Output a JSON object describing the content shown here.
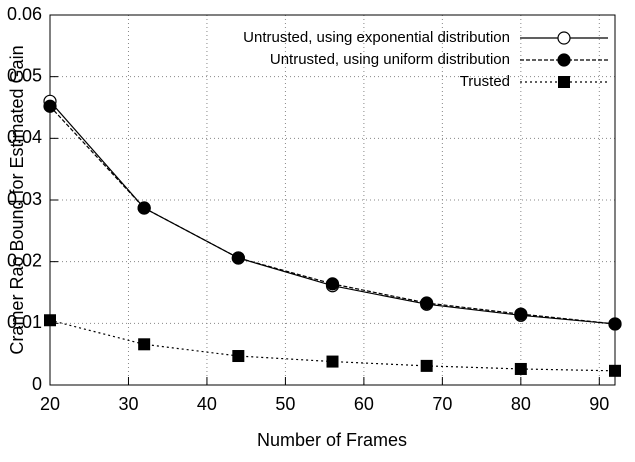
{
  "chart_data": {
    "type": "line",
    "xlabel": "Number of Frames",
    "ylabel": "Cramer Rao Bound for Estimated Gain",
    "x": [
      20,
      32,
      44,
      56,
      68,
      80,
      92
    ],
    "series": [
      {
        "name": "Untrusted, using exponential distribution",
        "color": "#000000",
        "line_style": "solid",
        "marker": "open-circle",
        "values": [
          0.046,
          0.0287,
          0.0206,
          0.0161,
          0.0131,
          0.0113,
          0.0099
        ]
      },
      {
        "name": "Untrusted, using uniform distribution",
        "color": "#000000",
        "line_style": "dashed",
        "marker": "filled-circle",
        "values": [
          0.0452,
          0.0287,
          0.0206,
          0.0164,
          0.0133,
          0.0115,
          0.0099
        ]
      },
      {
        "name": "Trusted",
        "color": "#000000",
        "line_style": "dotted",
        "marker": "filled-square",
        "values": [
          0.0105,
          0.0066,
          0.0047,
          0.0038,
          0.0031,
          0.0026,
          0.0023
        ]
      }
    ],
    "xlim": [
      20,
      92
    ],
    "xticks": [
      20,
      30,
      40,
      50,
      60,
      70,
      80,
      90
    ],
    "ylim": [
      0,
      0.06
    ],
    "yticks": [
      0,
      0.01,
      0.02,
      0.03,
      0.04,
      0.05,
      0.06
    ],
    "grid": true,
    "legend": "top-right"
  }
}
